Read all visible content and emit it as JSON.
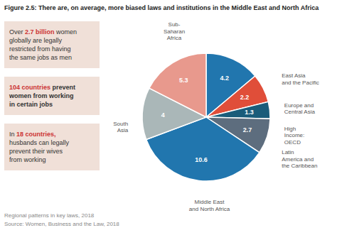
{
  "chart_data": {
    "type": "pie",
    "title": "Figure 2.5: There are, on average, more biased laws and institutions in the Middle East and North Africa",
    "categories": [
      "East Asia\nand the Pacific",
      "Europe and\nCentral Asia",
      "High\nIncome:\nOECD",
      "Latin\nAmerica and\nthe Caribbean",
      "Middle East\nand North Africa",
      "South\nAsia",
      "Sub-\nSaharan\nAfrica"
    ],
    "values": [
      4.2,
      2.2,
      1.3,
      2.7,
      10.6,
      4.0,
      5.3
    ],
    "colors": [
      "#2176ae",
      "#e04e39",
      "#1a5c7a",
      "#5d6d7e",
      "#2176ae",
      "#aab7b8",
      "#e8998d"
    ],
    "data_labels": true,
    "annotations": [
      {
        "color": "#f0e0d8",
        "segments": [
          {
            "text": "Over ",
            "color": "#333333"
          },
          {
            "text": "2.7 billion",
            "color": "#cc3333"
          },
          {
            "text": " women\nglobally are legally\nrestricted from having\nthe same jobs as men",
            "color": "#333333"
          }
        ]
      },
      {
        "color": "#f0e0d8",
        "segments": [
          {
            "text": "104 countries",
            "color": "#cc3333"
          },
          {
            "text": " prevent\nwomen from working\nin certain jobs",
            "color": "#333333"
          }
        ]
      },
      {
        "color": "#f0e0d8",
        "segments": [
          {
            "text": "In ",
            "color": "#333333"
          },
          {
            "text": "18 countries,",
            "color": "#cc3333"
          },
          {
            "text": "\nhusbands can legally\nprevent their wives\nfrom working",
            "color": "#333333"
          }
        ]
      }
    ],
    "notes": [
      "Regional patterns in key laws, 2018",
      "Source: Women, Business and the Law, 2018"
    ]
  }
}
